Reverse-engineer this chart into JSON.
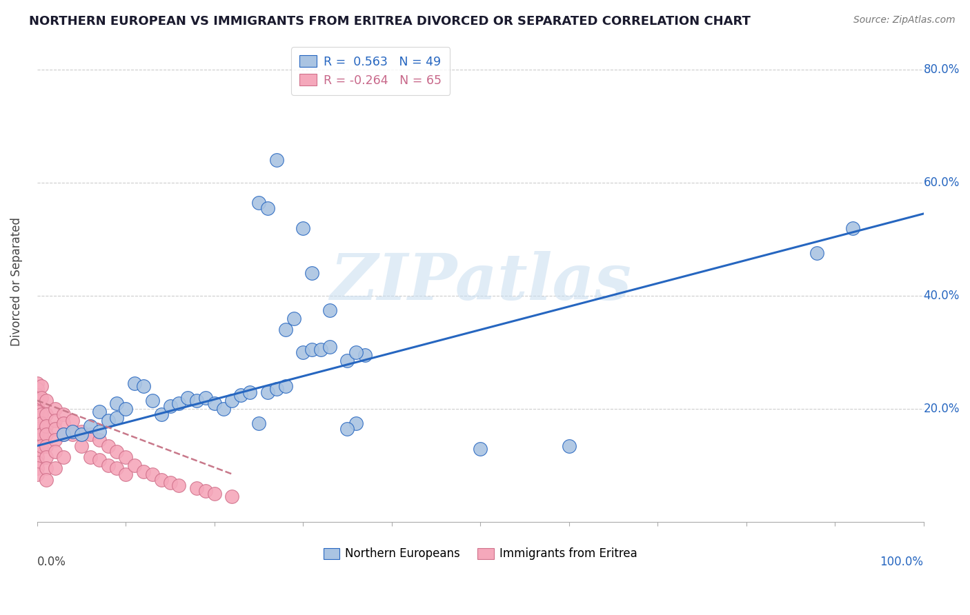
{
  "title": "NORTHERN EUROPEAN VS IMMIGRANTS FROM ERITREA DIVORCED OR SEPARATED CORRELATION CHART",
  "source": "Source: ZipAtlas.com",
  "ylabel": "Divorced or Separated",
  "r_blue": 0.563,
  "n_blue": 49,
  "r_pink": -0.264,
  "n_pink": 65,
  "blue_color": "#aac4e2",
  "pink_color": "#f5a8bb",
  "line_blue": "#2666c0",
  "line_pink": "#c8788a",
  "watermark": "ZIPatlas",
  "legend_label_blue": "Northern Europeans",
  "legend_label_pink": "Immigrants from Eritrea",
  "xlim": [
    0.0,
    1.0
  ],
  "ylim": [
    0.0,
    0.85
  ],
  "blue_x": [
    0.03,
    0.04,
    0.05,
    0.06,
    0.07,
    0.07,
    0.08,
    0.09,
    0.09,
    0.1,
    0.11,
    0.12,
    0.13,
    0.14,
    0.15,
    0.16,
    0.17,
    0.18,
    0.19,
    0.2,
    0.21,
    0.22,
    0.23,
    0.24,
    0.25,
    0.26,
    0.27,
    0.28,
    0.3,
    0.31,
    0.32,
    0.33,
    0.35,
    0.36,
    0.28,
    0.29,
    0.3,
    0.31,
    0.33,
    0.37,
    0.5,
    0.6,
    0.88,
    0.92,
    0.25,
    0.26,
    0.27,
    0.35,
    0.36
  ],
  "blue_y": [
    0.155,
    0.16,
    0.155,
    0.17,
    0.16,
    0.195,
    0.18,
    0.185,
    0.21,
    0.2,
    0.245,
    0.24,
    0.215,
    0.19,
    0.205,
    0.21,
    0.22,
    0.215,
    0.22,
    0.21,
    0.2,
    0.215,
    0.225,
    0.23,
    0.175,
    0.23,
    0.235,
    0.24,
    0.3,
    0.305,
    0.305,
    0.31,
    0.285,
    0.175,
    0.34,
    0.36,
    0.52,
    0.44,
    0.375,
    0.295,
    0.13,
    0.135,
    0.475,
    0.52,
    0.565,
    0.555,
    0.64,
    0.165,
    0.3
  ],
  "pink_x": [
    0.0,
    0.0,
    0.0,
    0.0,
    0.0,
    0.0,
    0.0,
    0.0,
    0.0,
    0.0,
    0.0,
    0.0,
    0.0,
    0.0,
    0.0,
    0.0,
    0.0,
    0.005,
    0.005,
    0.005,
    0.005,
    0.005,
    0.005,
    0.01,
    0.01,
    0.01,
    0.01,
    0.01,
    0.01,
    0.01,
    0.01,
    0.02,
    0.02,
    0.02,
    0.02,
    0.02,
    0.02,
    0.03,
    0.03,
    0.03,
    0.03,
    0.04,
    0.04,
    0.05,
    0.05,
    0.06,
    0.06,
    0.07,
    0.07,
    0.08,
    0.08,
    0.09,
    0.09,
    0.1,
    0.1,
    0.11,
    0.12,
    0.13,
    0.14,
    0.15,
    0.16,
    0.18,
    0.19,
    0.2,
    0.22
  ],
  "pink_y": [
    0.245,
    0.235,
    0.225,
    0.215,
    0.205,
    0.195,
    0.185,
    0.175,
    0.165,
    0.155,
    0.145,
    0.135,
    0.125,
    0.115,
    0.105,
    0.095,
    0.085,
    0.24,
    0.22,
    0.19,
    0.175,
    0.155,
    0.135,
    0.215,
    0.19,
    0.17,
    0.155,
    0.135,
    0.115,
    0.095,
    0.075,
    0.2,
    0.18,
    0.165,
    0.145,
    0.125,
    0.095,
    0.19,
    0.175,
    0.155,
    0.115,
    0.18,
    0.155,
    0.16,
    0.135,
    0.155,
    0.115,
    0.145,
    0.11,
    0.135,
    0.1,
    0.125,
    0.095,
    0.115,
    0.085,
    0.1,
    0.09,
    0.085,
    0.075,
    0.07,
    0.065,
    0.06,
    0.055,
    0.05,
    0.045
  ],
  "blue_line_x": [
    0.0,
    1.0
  ],
  "blue_line_y": [
    0.135,
    0.545
  ],
  "pink_line_x": [
    0.0,
    0.22
  ],
  "pink_line_y": [
    0.215,
    0.085
  ]
}
